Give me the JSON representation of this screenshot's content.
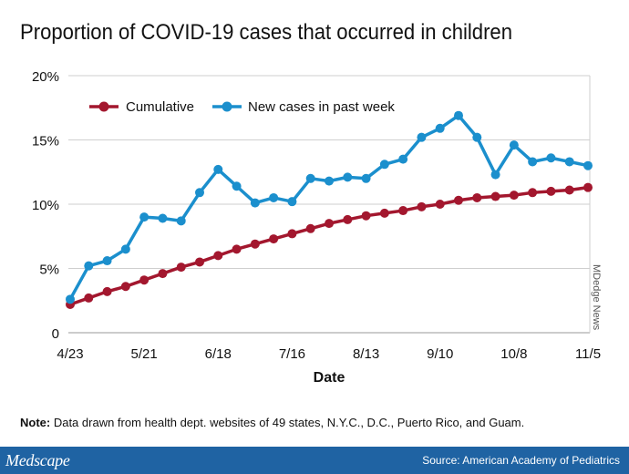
{
  "title": "Proportion of COVID-19 cases that occurred in children",
  "note_label": "Note:",
  "note_text": " Data drawn from health dept. websites of 49 states, N.Y.C., D.C., Puerto Rico, and Guam.",
  "footer": {
    "brand": "Medscape",
    "source": "Source: American Academy of Pediatrics",
    "bar_color": "#1f63a3"
  },
  "credit": "MDedge News",
  "chart_data": {
    "type": "line",
    "title": "Proportion of COVID-19 cases that occurred in children",
    "xlabel": "Date",
    "ylabel": "",
    "x": [
      "4/23",
      "4/30",
      "5/7",
      "5/14",
      "5/21",
      "5/28",
      "6/4",
      "6/11",
      "6/18",
      "6/25",
      "7/2",
      "7/9",
      "7/16",
      "7/23",
      "7/30",
      "8/6",
      "8/13",
      "8/20",
      "8/27",
      "9/3",
      "9/10",
      "9/17",
      "9/24",
      "10/1",
      "10/8",
      "10/15",
      "10/22",
      "10/29",
      "11/5"
    ],
    "x_tick_labels": [
      "4/23",
      "5/21",
      "6/18",
      "7/16",
      "8/13",
      "9/10",
      "10/8",
      "11/5"
    ],
    "ylim": [
      0,
      20
    ],
    "y_ticks": [
      0,
      5,
      10,
      15,
      20
    ],
    "y_tick_labels": [
      "0",
      "5%",
      "10%",
      "15%",
      "20%"
    ],
    "grid": true,
    "legend_placement": "top-left",
    "series": [
      {
        "name": "Cumulative",
        "color": "#a3172e",
        "values": [
          2.2,
          2.7,
          3.2,
          3.6,
          4.1,
          4.6,
          5.1,
          5.5,
          6.0,
          6.5,
          6.9,
          7.3,
          7.7,
          8.1,
          8.5,
          8.8,
          9.1,
          9.3,
          9.5,
          9.8,
          10.0,
          10.3,
          10.5,
          10.6,
          10.7,
          10.9,
          11.0,
          11.1,
          11.3
        ]
      },
      {
        "name": "New cases in past week",
        "color": "#1b8fcd",
        "values": [
          2.6,
          5.2,
          5.6,
          6.5,
          9.0,
          8.9,
          8.7,
          10.9,
          12.7,
          11.4,
          10.1,
          10.5,
          10.2,
          12.0,
          11.8,
          12.1,
          12.0,
          13.1,
          13.5,
          15.2,
          15.9,
          16.9,
          15.2,
          12.3,
          14.6,
          13.3,
          13.6,
          13.3,
          13.0
        ]
      }
    ]
  }
}
